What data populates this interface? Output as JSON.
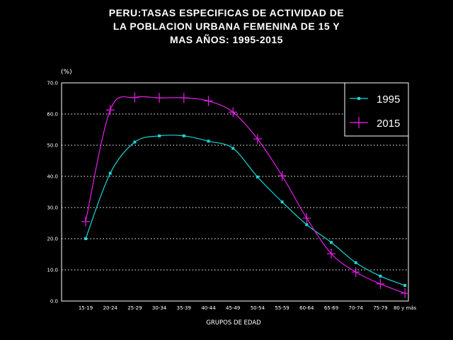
{
  "chart_data": {
    "type": "line",
    "title": [
      "PERU:TASAS ESPECIFICAS DE ACTIVIDAD DE",
      "LA POBLACION URBANA FEMENINA DE 15 Y",
      "MAS AÑOS: 1995-2015"
    ],
    "xlabel": "GRUPOS DE EDAD",
    "ylabel": "(%)",
    "ylim": [
      0,
      70
    ],
    "yticks": [
      "0.0",
      "10.0",
      "20.0",
      "30.0",
      "40.0",
      "50.0",
      "60.0",
      "70.0"
    ],
    "grid": "horizontal dotted",
    "legend_position": "top-right",
    "categories": [
      "15-19",
      "20-24",
      "25-29",
      "30-34",
      "35-39",
      "40-44",
      "45-49",
      "50-54",
      "55-59",
      "60-64",
      "65-69",
      "70-74",
      "75-79",
      "80 y más"
    ],
    "series": [
      {
        "name": "1995",
        "color": "#19d6d6",
        "marker": "square",
        "values": [
          20.0,
          41.0,
          51.0,
          53.0,
          53.0,
          51.3,
          49.0,
          39.8,
          31.8,
          24.5,
          18.8,
          12.3,
          8.0,
          5.0
        ]
      },
      {
        "name": "2015",
        "color": "#e81ee8",
        "marker": "plus",
        "values": [
          25.5,
          61.3,
          65.3,
          65.2,
          65.2,
          64.2,
          60.6,
          52.0,
          40.2,
          26.6,
          15.2,
          9.3,
          5.5,
          2.5
        ]
      }
    ]
  }
}
